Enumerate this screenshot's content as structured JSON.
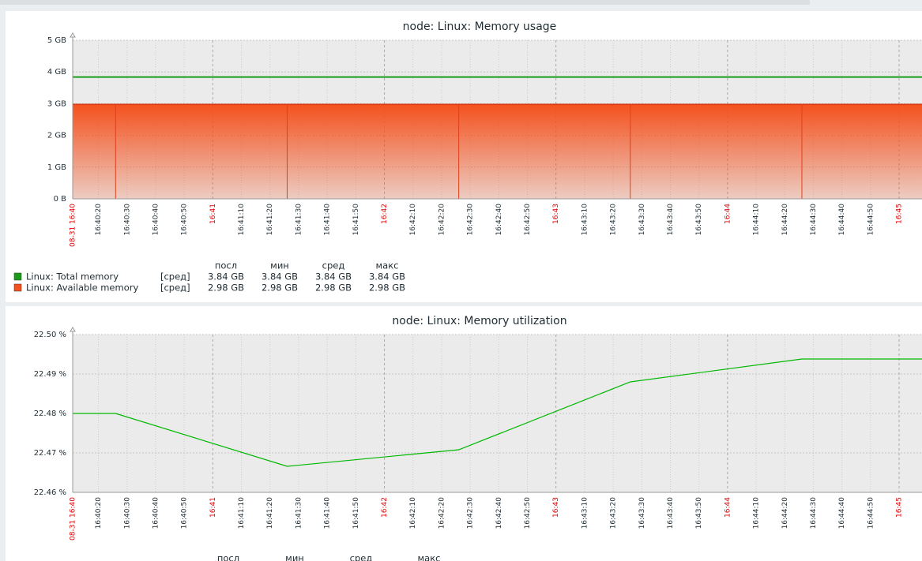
{
  "chart_data": [
    {
      "type": "line",
      "title": "node: Linux: Memory usage",
      "x": [
        11,
        26,
        86,
        146,
        206,
        266,
        308
      ],
      "xlim": [
        11,
        308
      ],
      "xticks": [
        {
          "value": 11,
          "label": "08-31 16:40"
        },
        {
          "value": 20,
          "label": "16:40:20"
        },
        {
          "value": 30,
          "label": "16:40:30"
        },
        {
          "value": 40,
          "label": "16:40:40"
        },
        {
          "value": 50,
          "label": "16:40:50"
        },
        {
          "value": 60,
          "label": "16:41"
        },
        {
          "value": 70,
          "label": "16:41:10"
        },
        {
          "value": 80,
          "label": "16:41:20"
        },
        {
          "value": 90,
          "label": "16:41:30"
        },
        {
          "value": 100,
          "label": "16:41:40"
        },
        {
          "value": 110,
          "label": "16:41:50"
        },
        {
          "value": 120,
          "label": "16:42"
        },
        {
          "value": 130,
          "label": "16:42:10"
        },
        {
          "value": 140,
          "label": "16:42:20"
        },
        {
          "value": 150,
          "label": "16:42:30"
        },
        {
          "value": 160,
          "label": "16:42:40"
        },
        {
          "value": 170,
          "label": "16:42:50"
        },
        {
          "value": 180,
          "label": "16:43"
        },
        {
          "value": 190,
          "label": "16:43:10"
        },
        {
          "value": 200,
          "label": "16:43:20"
        },
        {
          "value": 210,
          "label": "16:43:30"
        },
        {
          "value": 220,
          "label": "16:43:40"
        },
        {
          "value": 230,
          "label": "16:43:50"
        },
        {
          "value": 240,
          "label": "16:44"
        },
        {
          "value": 250,
          "label": "16:44:10"
        },
        {
          "value": 260,
          "label": "16:44:20"
        },
        {
          "value": 270,
          "label": "16:44:30"
        },
        {
          "value": 280,
          "label": "16:44:40"
        },
        {
          "value": 290,
          "label": "16:44:50"
        },
        {
          "value": 300,
          "label": "16:45"
        }
      ],
      "ylim": [
        0,
        5
      ],
      "yticks": [
        {
          "value": 0,
          "label": "0 B"
        },
        {
          "value": 1,
          "label": "1 GB"
        },
        {
          "value": 2,
          "label": "2 GB"
        },
        {
          "value": 3,
          "label": "3 GB"
        },
        {
          "value": 4,
          "label": "4 GB"
        },
        {
          "value": 5,
          "label": "5 GB"
        }
      ],
      "grid": true,
      "series": [
        {
          "name": "Linux: Total memory",
          "color": "#1a9c1a",
          "style": "line",
          "values": [
            3.84,
            3.84,
            3.84,
            3.84,
            3.84,
            3.84,
            3.84
          ]
        },
        {
          "name": "Linux: Available memory",
          "color": "#f4511e",
          "style": "area",
          "values": [
            2.98,
            2.98,
            2.98,
            2.98,
            2.98,
            2.98,
            2.98
          ]
        }
      ],
      "legend": {
        "columns": [
          "посл",
          "мин",
          "сред",
          "макс"
        ],
        "rows": [
          {
            "function": "[сред]",
            "stats": [
              "3.84 GB",
              "3.84 GB",
              "3.84 GB",
              "3.84 GB"
            ]
          },
          {
            "function": "[сред]",
            "stats": [
              "2.98 GB",
              "2.98 GB",
              "2.98 GB",
              "2.98 GB"
            ]
          }
        ]
      }
    },
    {
      "type": "line",
      "title": "node: Linux: Memory utilization",
      "x": [
        11,
        26,
        86,
        146,
        206,
        266,
        308
      ],
      "xlim": [
        11,
        308
      ],
      "xticks": [
        {
          "value": 11,
          "label": "08-31 16:40"
        },
        {
          "value": 20,
          "label": "16:40:20"
        },
        {
          "value": 30,
          "label": "16:40:30"
        },
        {
          "value": 40,
          "label": "16:40:40"
        },
        {
          "value": 50,
          "label": "16:40:50"
        },
        {
          "value": 60,
          "label": "16:41"
        },
        {
          "value": 70,
          "label": "16:41:10"
        },
        {
          "value": 80,
          "label": "16:41:20"
        },
        {
          "value": 90,
          "label": "16:41:30"
        },
        {
          "value": 100,
          "label": "16:41:40"
        },
        {
          "value": 110,
          "label": "16:41:50"
        },
        {
          "value": 120,
          "label": "16:42"
        },
        {
          "value": 130,
          "label": "16:42:10"
        },
        {
          "value": 140,
          "label": "16:42:20"
        },
        {
          "value": 150,
          "label": "16:42:30"
        },
        {
          "value": 160,
          "label": "16:42:40"
        },
        {
          "value": 170,
          "label": "16:42:50"
        },
        {
          "value": 180,
          "label": "16:43"
        },
        {
          "value": 190,
          "label": "16:43:10"
        },
        {
          "value": 200,
          "label": "16:43:20"
        },
        {
          "value": 210,
          "label": "16:43:30"
        },
        {
          "value": 220,
          "label": "16:43:40"
        },
        {
          "value": 230,
          "label": "16:43:50"
        },
        {
          "value": 240,
          "label": "16:44"
        },
        {
          "value": 250,
          "label": "16:44:10"
        },
        {
          "value": 260,
          "label": "16:44:20"
        },
        {
          "value": 270,
          "label": "16:44:30"
        },
        {
          "value": 280,
          "label": "16:44:40"
        },
        {
          "value": 290,
          "label": "16:44:50"
        },
        {
          "value": 300,
          "label": "16:45"
        }
      ],
      "ylim": [
        22.46,
        22.5
      ],
      "yticks": [
        {
          "value": 22.46,
          "label": "22.46 %"
        },
        {
          "value": 22.47,
          "label": "22.47 %"
        },
        {
          "value": 22.48,
          "label": "22.48 %"
        },
        {
          "value": 22.49,
          "label": "22.49 %"
        },
        {
          "value": 22.5,
          "label": "22.50 %"
        }
      ],
      "grid": true,
      "series": [
        {
          "name": "Linux: Memory utilization",
          "color": "#00b800",
          "style": "line",
          "values": [
            22.48,
            22.48,
            22.4666,
            22.4708,
            22.488,
            22.4938,
            22.4938
          ]
        }
      ],
      "legend": {
        "columns": [
          "посл",
          "мин",
          "сред",
          "макс"
        ],
        "rows": []
      }
    }
  ]
}
